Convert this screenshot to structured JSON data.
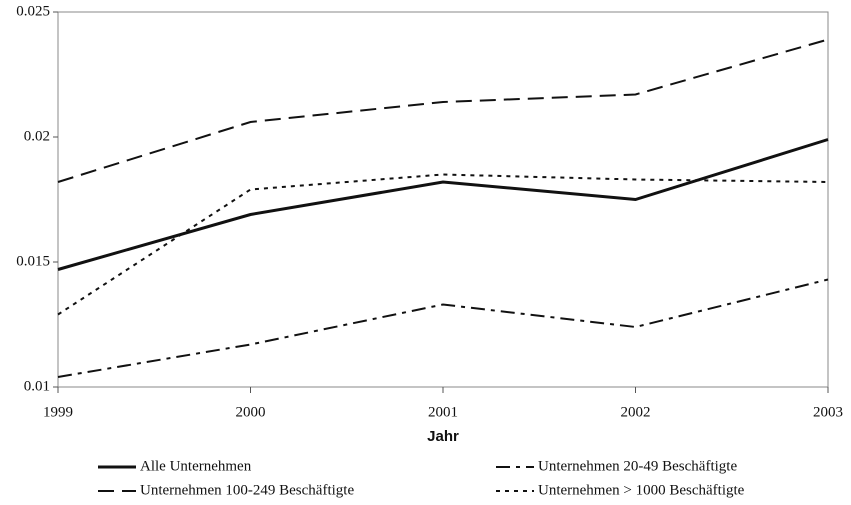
{
  "chart_data": {
    "type": "line",
    "x_label": "Jahr",
    "x": [
      1999,
      2000,
      2001,
      2002,
      2003
    ],
    "xlim": [
      1999,
      2003
    ],
    "xticks": [
      1999,
      2000,
      2001,
      2002,
      2003
    ],
    "ylim": [
      0.01,
      0.025
    ],
    "yticks": [
      0.01,
      0.015,
      0.02,
      0.025
    ],
    "series": [
      {
        "name": "Alle Unternehmen",
        "color": "#111111",
        "dash": "solid",
        "values": [
          0.0147,
          0.0169,
          0.0182,
          0.0175,
          0.0199
        ]
      },
      {
        "name": "Unternehmen 20-49 Beschäftigte",
        "color": "#111111",
        "dash": "dashdot",
        "values": [
          0.0104,
          0.0117,
          0.0133,
          0.0124,
          0.0143
        ]
      },
      {
        "name": "Unternehmen 100-249 Beschäftigte",
        "color": "#111111",
        "dash": "dashed",
        "values": [
          0.0182,
          0.0206,
          0.0214,
          0.0217,
          0.0239
        ]
      },
      {
        "name": "Unternehmen > 1000 Beschäftigte",
        "color": "#111111",
        "dash": "dotted",
        "values": [
          0.0129,
          0.0179,
          0.0185,
          0.0183,
          0.0182
        ]
      }
    ]
  }
}
